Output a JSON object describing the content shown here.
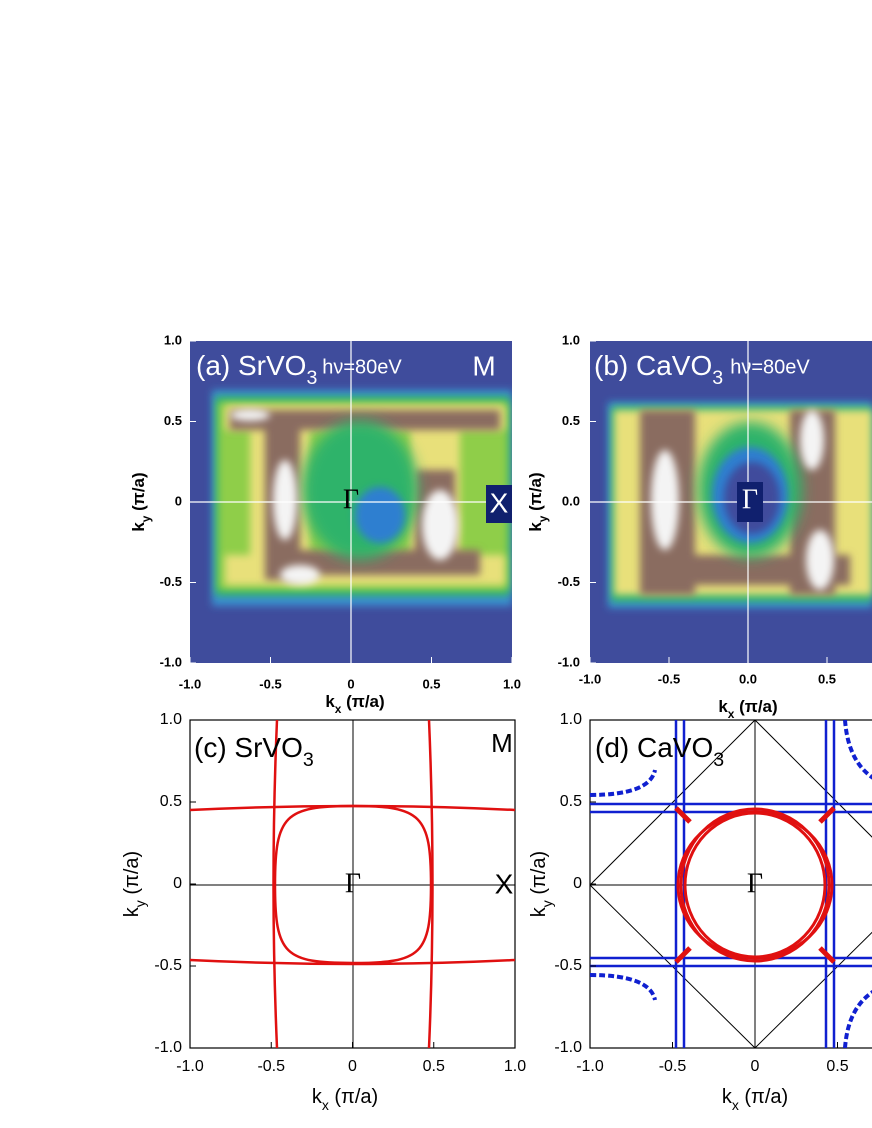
{
  "chart_data": [
    {
      "type": "heatmap",
      "title": [
        "(a) SrVO",
        "3"
      ],
      "annotations": [
        "hν=80eV",
        "M",
        "Γ",
        "X"
      ],
      "x_label": [
        "k",
        "x",
        " (π/a)"
      ],
      "y_label": [
        "k",
        "y",
        " (π/a)"
      ],
      "xlim": [
        -1,
        1
      ],
      "ylim": [
        -1,
        1
      ],
      "xticks": [
        {
          "value": -1,
          "label": "-1.0"
        },
        -0.5,
        0,
        0.5,
        {
          "value": 1,
          "label": "1.0"
        }
      ],
      "yticks": [
        {
          "value": -1,
          "label": "-1.0"
        },
        -0.5,
        0,
        0.5,
        {
          "value": 1,
          "label": "1.0"
        }
      ]
    },
    {
      "type": "heatmap",
      "title": [
        "(b) CaVO",
        "3"
      ],
      "annotations": [
        "hν=80eV",
        "Γ"
      ],
      "x_label": [
        "k",
        "x",
        " (π/a)"
      ],
      "y_label": [
        "k",
        "y",
        " (π/a)"
      ],
      "xlim": [
        -1,
        1
      ],
      "ylim": [
        -1,
        1
      ],
      "xticks": [
        {
          "value": -1,
          "label": "-1.0"
        },
        -0.5,
        {
          "value": 0,
          "label": "0.0"
        },
        0.5
      ],
      "yticks": [
        {
          "value": -1,
          "label": "-1.0"
        },
        -0.5,
        {
          "value": 0,
          "label": "0.0"
        },
        0.5,
        {
          "value": 1,
          "label": "1.0"
        }
      ]
    },
    {
      "type": "contour",
      "title": [
        "(c) SrVO",
        "3"
      ],
      "annotations": [
        "M",
        "Γ",
        "X"
      ],
      "x_label": [
        "k",
        "x",
        " (π/a)"
      ],
      "y_label": [
        "k",
        "y",
        " (π/a)"
      ],
      "xlim": [
        -1,
        1
      ],
      "ylim": [
        -1,
        1
      ],
      "xticks": [
        {
          "value": -1,
          "label": "-1.0"
        },
        -0.5,
        0,
        0.5,
        {
          "value": 1,
          "label": "1.0"
        }
      ],
      "yticks": [
        {
          "value": -1,
          "label": "-1.0"
        },
        -0.5,
        0,
        0.5,
        {
          "value": 1,
          "label": "1.0"
        }
      ]
    },
    {
      "type": "contour",
      "title": [
        "(d) CaVO",
        "3"
      ],
      "annotations": [
        "Γ"
      ],
      "x_label": [
        "k",
        "x",
        " (π/a)"
      ],
      "y_label": [
        "k",
        "y",
        " (π/a)"
      ],
      "xlim": [
        -1,
        1
      ],
      "ylim": [
        -1,
        1
      ],
      "xticks": [
        {
          "value": -1,
          "label": "-1.0"
        },
        -0.5,
        0,
        0.5
      ],
      "yticks": [
        {
          "value": -1,
          "label": "-1.0"
        },
        -0.5,
        0,
        0.5,
        {
          "value": 1,
          "label": "1.0"
        }
      ]
    }
  ]
}
